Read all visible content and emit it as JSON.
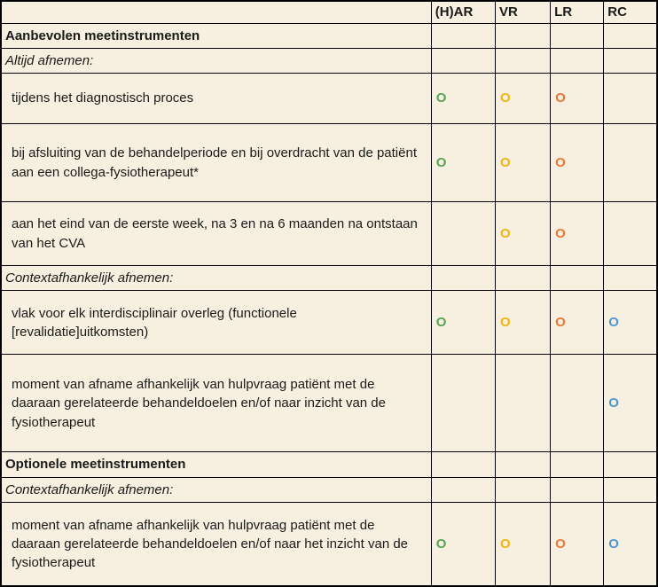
{
  "colors": {
    "background": "#f7f0e0",
    "border": "#000000",
    "text": "#1a1a1a",
    "green": "#55a356",
    "yellow": "#f2b50f",
    "orange": "#e8783a",
    "blue": "#4e97d4"
  },
  "marker": {
    "glyph": "O"
  },
  "table": {
    "columns": [
      "",
      "(H)AR",
      "VR",
      "LR",
      "RC"
    ],
    "rows": [
      {
        "type": "section",
        "label": "Aanbevolen meetinstrumenten",
        "cells": [
          "",
          "",
          "",
          ""
        ]
      },
      {
        "type": "subsection",
        "label": "Altijd afnemen:",
        "cells": [
          "",
          "",
          "",
          ""
        ]
      },
      {
        "type": "item",
        "label": "tijdens het diagnostisch proces",
        "cells": [
          "green",
          "yellow",
          "orange",
          ""
        ]
      },
      {
        "type": "item",
        "label": "bij afsluiting van de behandelperiode en bij overdracht van de patiënt aan een collega-fysiotherapeut*",
        "cells": [
          "green",
          "yellow",
          "orange",
          ""
        ]
      },
      {
        "type": "item",
        "label": "aan het eind van de eerste week, na 3 en na 6 maanden na ontstaan van het CVA",
        "cells": [
          "",
          "yellow",
          "orange",
          ""
        ]
      },
      {
        "type": "subsection",
        "label": "Contextafhankelijk afnemen:",
        "cells": [
          "",
          "",
          "",
          ""
        ]
      },
      {
        "type": "item",
        "label": "vlak voor elk interdisciplinair overleg (functionele [revalidatie]uitkomsten)",
        "cells": [
          "green",
          "yellow",
          "orange",
          "blue"
        ]
      },
      {
        "type": "item",
        "label": "moment van afname afhankelijk van hulpvraag patiënt met de daaraan gerelateerde behandeldoelen en/of naar inzicht van de fysiotherapeut",
        "cells": [
          "",
          "",
          "",
          "blue"
        ]
      },
      {
        "type": "section",
        "label": "Optionele meetinstrumenten",
        "cells": [
          "",
          "",
          "",
          ""
        ]
      },
      {
        "type": "subsection",
        "label": "Contextafhankelijk afnemen:",
        "cells": [
          "",
          "",
          "",
          ""
        ]
      },
      {
        "type": "item",
        "label": "moment van afname afhankelijk van hulpvraag patiënt met de daaraan gerelateerde behandeldoelen en/of naar het inzicht van de fysiotherapeut",
        "cells": [
          "green",
          "yellow",
          "orange",
          "blue"
        ]
      }
    ]
  }
}
